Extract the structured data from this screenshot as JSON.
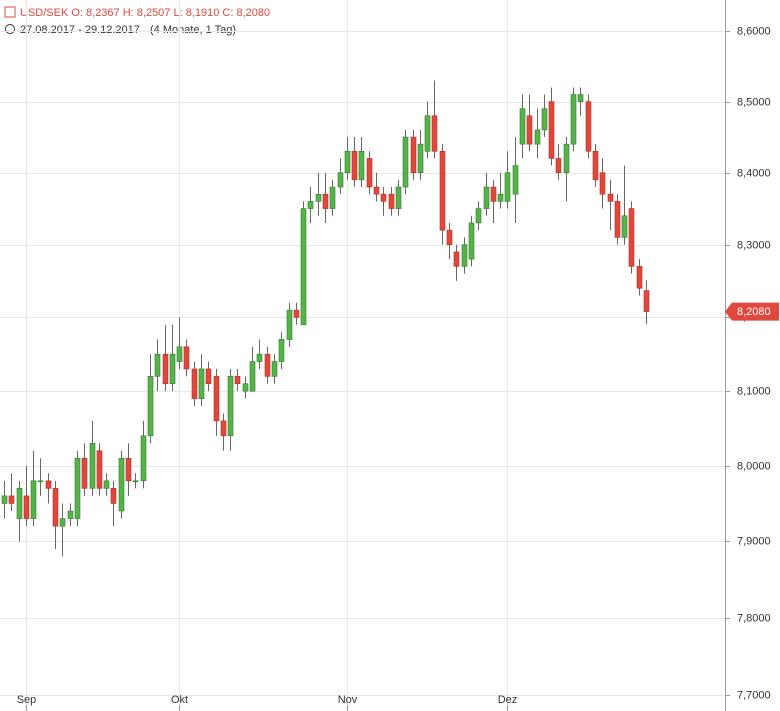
{
  "chart_data": {
    "type": "candlestick",
    "legend_text": "USD/SEK  O: 8,2367  H: 8,2507  L: 8,1910  C: 8,2080",
    "subtitle": "27.08.2017 - 29.12.2017",
    "subtitle_note": "(4 Monate, 1 Tag)",
    "last_label": "8,2080",
    "yscale": "log",
    "grid": true,
    "up_color": "#56b34a",
    "down_color": "#e0483c",
    "ylim": [
      7.68,
      8.645
    ],
    "yticks": [
      {
        "value": 8.6,
        "label": "8,6000"
      },
      {
        "value": 8.5,
        "label": "8,5000"
      },
      {
        "value": 8.4,
        "label": "8,4000"
      },
      {
        "value": 8.3,
        "label": "8,3000"
      },
      {
        "value": 8.2,
        "label": "8,2000"
      },
      {
        "value": 8.1,
        "label": "8,1000"
      },
      {
        "value": 8.0,
        "label": "8,0000"
      },
      {
        "value": 7.9,
        "label": "7,9000"
      },
      {
        "value": 7.8,
        "label": "7,8000"
      },
      {
        "value": 7.7,
        "label": "7,7000"
      }
    ],
    "categories": [
      null,
      null,
      null,
      "Sep",
      null,
      null,
      null,
      null,
      null,
      null,
      null,
      null,
      null,
      null,
      null,
      null,
      null,
      null,
      null,
      null,
      null,
      null,
      null,
      null,
      "Okt",
      null,
      null,
      null,
      null,
      null,
      null,
      null,
      null,
      null,
      null,
      null,
      null,
      null,
      null,
      null,
      null,
      null,
      null,
      null,
      null,
      null,
      null,
      "Nov",
      null,
      null,
      null,
      null,
      null,
      null,
      null,
      null,
      null,
      null,
      null,
      null,
      null,
      null,
      null,
      null,
      null,
      null,
      null,
      null,
      null,
      "Dez",
      null,
      null,
      null,
      null,
      null,
      null,
      null,
      null,
      null,
      null,
      null,
      null,
      null,
      null,
      null,
      null,
      null,
      null,
      null
    ],
    "open": [
      7.95,
      7.96,
      7.93,
      7.96,
      7.93,
      7.98,
      7.98,
      7.97,
      7.92,
      7.93,
      7.93,
      8.01,
      7.97,
      8.02,
      7.97,
      7.97,
      7.94,
      8.01,
      7.98,
      7.98,
      8.04,
      8.12,
      8.15,
      8.11,
      8.14,
      8.16,
      8.13,
      8.09,
      8.13,
      8.12,
      8.06,
      8.04,
      8.12,
      8.1,
      8.1,
      8.14,
      8.15,
      8.12,
      8.14,
      8.17,
      8.21,
      8.19,
      8.35,
      8.36,
      8.37,
      8.35,
      8.38,
      8.4,
      8.43,
      8.39,
      8.42,
      8.38,
      8.37,
      8.37,
      8.35,
      8.38,
      8.45,
      8.4,
      8.43,
      8.48,
      8.43,
      8.32,
      8.29,
      8.27,
      8.28,
      8.33,
      8.35,
      8.38,
      8.36,
      8.36,
      8.37,
      8.44,
      8.48,
      8.44,
      8.46,
      8.5,
      8.42,
      8.4,
      8.44,
      8.5,
      8.5,
      8.43,
      8.4,
      8.37,
      8.36,
      8.31,
      8.35,
      8.27,
      8.2367
    ],
    "high": [
      7.98,
      7.99,
      7.98,
      8.0,
      8.02,
      8.01,
      7.99,
      7.98,
      7.95,
      7.95,
      8.02,
      8.03,
      8.06,
      8.03,
      7.99,
      7.98,
      8.02,
      8.03,
      7.99,
      8.06,
      8.15,
      8.17,
      8.19,
      8.19,
      8.2,
      8.17,
      8.14,
      8.15,
      8.14,
      8.13,
      8.07,
      8.13,
      8.13,
      8.12,
      8.16,
      8.17,
      8.16,
      8.15,
      8.18,
      8.22,
      8.22,
      8.36,
      8.38,
      8.4,
      8.4,
      8.39,
      8.42,
      8.45,
      8.45,
      8.45,
      8.43,
      8.4,
      8.38,
      8.38,
      8.39,
      8.46,
      8.46,
      8.46,
      8.5,
      8.53,
      8.44,
      8.33,
      8.3,
      8.31,
      8.34,
      8.36,
      8.4,
      8.39,
      8.4,
      8.43,
      8.45,
      8.51,
      8.51,
      8.49,
      8.51,
      8.52,
      8.44,
      8.45,
      8.52,
      8.52,
      8.51,
      8.44,
      8.42,
      8.39,
      8.37,
      8.41,
      8.36,
      8.28,
      8.2507
    ],
    "low": [
      7.93,
      7.94,
      7.9,
      7.92,
      7.92,
      7.96,
      7.95,
      7.89,
      7.88,
      7.92,
      7.92,
      7.96,
      7.96,
      7.96,
      7.96,
      7.92,
      7.93,
      7.96,
      7.97,
      7.97,
      8.03,
      8.1,
      8.1,
      8.1,
      8.13,
      8.12,
      8.08,
      8.08,
      8.1,
      8.04,
      8.02,
      8.02,
      8.1,
      8.09,
      8.1,
      8.13,
      8.11,
      8.11,
      8.13,
      8.16,
      8.19,
      8.19,
      8.33,
      8.34,
      8.33,
      8.34,
      8.37,
      8.39,
      8.38,
      8.38,
      8.37,
      8.36,
      8.34,
      8.34,
      8.34,
      8.37,
      8.39,
      8.39,
      8.42,
      8.42,
      8.3,
      8.28,
      8.25,
      8.26,
      8.27,
      8.32,
      8.34,
      8.33,
      8.35,
      8.35,
      8.33,
      8.42,
      8.43,
      8.42,
      8.45,
      8.41,
      8.39,
      8.36,
      8.43,
      8.48,
      8.42,
      8.38,
      8.35,
      8.32,
      8.3,
      8.3,
      8.26,
      8.23,
      8.191
    ],
    "close": [
      7.96,
      7.95,
      7.97,
      7.93,
      7.98,
      7.98,
      7.97,
      7.92,
      7.93,
      7.94,
      8.01,
      7.97,
      8.03,
      7.97,
      7.98,
      7.95,
      8.01,
      7.98,
      7.98,
      8.04,
      8.12,
      8.15,
      8.11,
      8.15,
      8.16,
      8.13,
      8.09,
      8.13,
      8.11,
      8.06,
      8.04,
      8.12,
      8.11,
      8.11,
      8.14,
      8.15,
      8.12,
      8.14,
      8.17,
      8.21,
      8.2,
      8.35,
      8.36,
      8.37,
      8.35,
      8.38,
      8.4,
      8.43,
      8.39,
      8.43,
      8.38,
      8.37,
      8.36,
      8.35,
      8.38,
      8.45,
      8.4,
      8.44,
      8.48,
      8.43,
      8.32,
      8.3,
      8.27,
      8.3,
      8.33,
      8.35,
      8.38,
      8.36,
      8.37,
      8.4,
      8.41,
      8.49,
      8.44,
      8.46,
      8.49,
      8.42,
      8.4,
      8.44,
      8.51,
      8.51,
      8.43,
      8.39,
      8.37,
      8.36,
      8.31,
      8.34,
      8.27,
      8.24,
      8.208
    ]
  }
}
